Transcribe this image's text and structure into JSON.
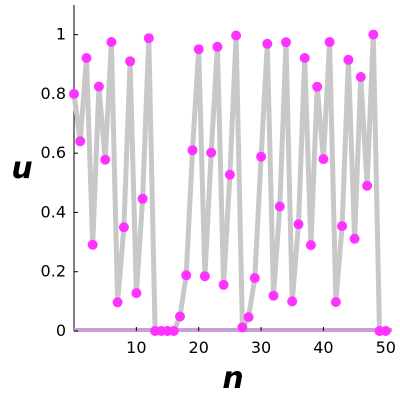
{
  "chart_data": {
    "type": "scatter",
    "title": "",
    "xlabel": "n",
    "ylabel": "u",
    "xlim": [
      0,
      51
    ],
    "ylim": [
      0,
      1.1
    ],
    "grid": false,
    "legend": "none",
    "x_ticks": [
      "10",
      "20",
      "30",
      "40",
      "50"
    ],
    "y_ticks": [
      "0",
      "0.2",
      "0.4",
      "0.6",
      "0.8",
      "1"
    ],
    "connected": true,
    "line_color": "#c8c8c8",
    "marker_color": "#ff33ff",
    "x": [
      0,
      1,
      2,
      3,
      4,
      5,
      6,
      7,
      8,
      9,
      10,
      11,
      12,
      13,
      14,
      15,
      16,
      17,
      18,
      19,
      20,
      21,
      22,
      23,
      24,
      25,
      26,
      27,
      28,
      29,
      30,
      31,
      32,
      33,
      34,
      35,
      36,
      37,
      38,
      39,
      40,
      41,
      42,
      43,
      44,
      45,
      46,
      47,
      48,
      49,
      50
    ],
    "values": [
      0.8,
      0.64,
      0.921,
      0.291,
      0.825,
      0.578,
      0.975,
      0.097,
      0.35,
      0.91,
      0.128,
      0.446,
      0.988,
      0.0,
      0.0,
      0.0,
      0.0,
      0.049,
      0.188,
      0.61,
      0.951,
      0.185,
      0.602,
      0.959,
      0.156,
      0.527,
      0.997,
      0.012,
      0.047,
      0.179,
      0.588,
      0.969,
      0.119,
      0.42,
      0.974,
      0.1,
      0.36,
      0.921,
      0.29,
      0.824,
      0.58,
      0.975,
      0.098,
      0.354,
      0.915,
      0.311,
      0.857,
      0.49,
      1.0,
      0.0,
      0.0
    ]
  }
}
